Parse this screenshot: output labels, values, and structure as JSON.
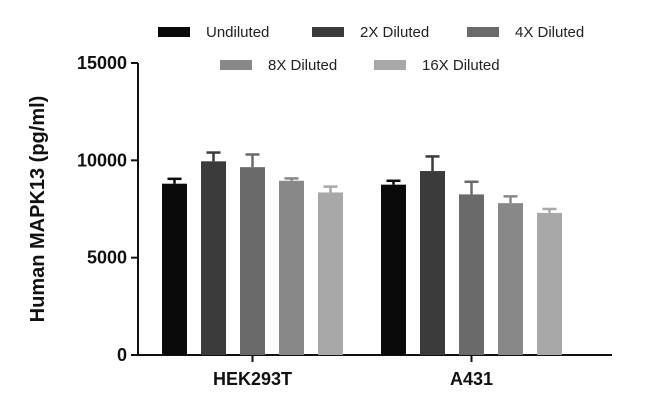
{
  "chart_data": {
    "type": "bar",
    "title": "",
    "xlabel": "",
    "ylabel": "Human MAPK13 (pg/ml)",
    "ylim": [
      0,
      15000
    ],
    "yticks": [
      "0",
      "5000",
      "10000",
      "15000"
    ],
    "categories": [
      "HEK293T",
      "A431"
    ],
    "legend_position": "top",
    "grid": false,
    "series": [
      {
        "name": "Undiluted",
        "color": "#0a0a0a",
        "values": [
          8800,
          8750
        ],
        "errors": [
          250,
          200
        ]
      },
      {
        "name": "2X Diluted",
        "color": "#3b3b3b",
        "values": [
          9950,
          9450
        ],
        "errors": [
          450,
          750
        ]
      },
      {
        "name": "4X Diluted",
        "color": "#6a6a6a",
        "values": [
          9650,
          8250
        ],
        "errors": [
          650,
          650
        ]
      },
      {
        "name": "8X Diluted",
        "color": "#888888",
        "values": [
          8950,
          7800
        ],
        "errors": [
          120,
          350
        ]
      },
      {
        "name": "16X Diluted",
        "color": "#a8a8a8",
        "values": [
          8350,
          7300
        ],
        "errors": [
          300,
          200
        ]
      }
    ]
  }
}
